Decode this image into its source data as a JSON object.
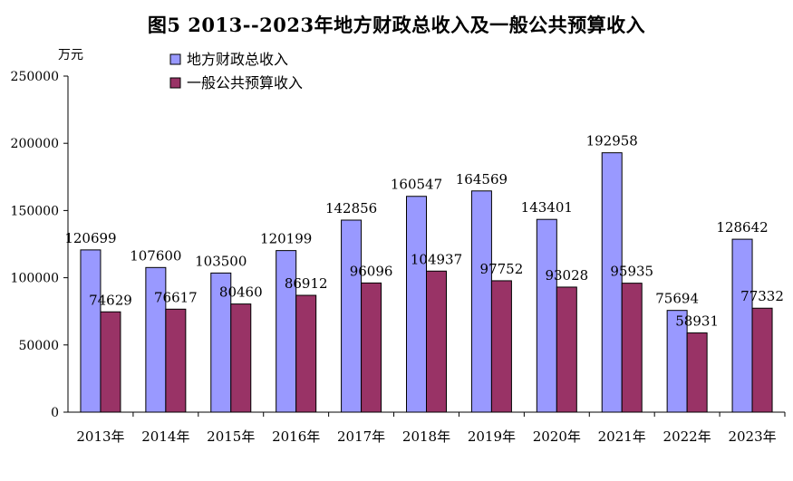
{
  "chart_data": {
    "type": "bar",
    "title": "图5  2013--2023年地方财政总收入及一般公共预算收入",
    "ylabel": "万元",
    "xlabel": "",
    "categories": [
      "2013年",
      "2014年",
      "2015年",
      "2016年",
      "2017年",
      "2018年",
      "2019年",
      "2020年",
      "2021年",
      "2022年",
      "2023年"
    ],
    "series": [
      {
        "name": "地方财政总收入",
        "color": "#9999ff",
        "values": [
          120699,
          107600,
          103500,
          120199,
          142856,
          160547,
          164569,
          143401,
          192958,
          75694,
          128642
        ]
      },
      {
        "name": "一般公共预算收入",
        "color": "#993366",
        "values": [
          74629,
          76617,
          80460,
          86912,
          96096,
          104937,
          97752,
          93028,
          95935,
          58931,
          77332
        ]
      }
    ],
    "ylim": [
      0,
      250000
    ],
    "yticks": [
      0,
      50000,
      100000,
      150000,
      200000,
      250000
    ],
    "grid": false,
    "legend": "top-left"
  }
}
